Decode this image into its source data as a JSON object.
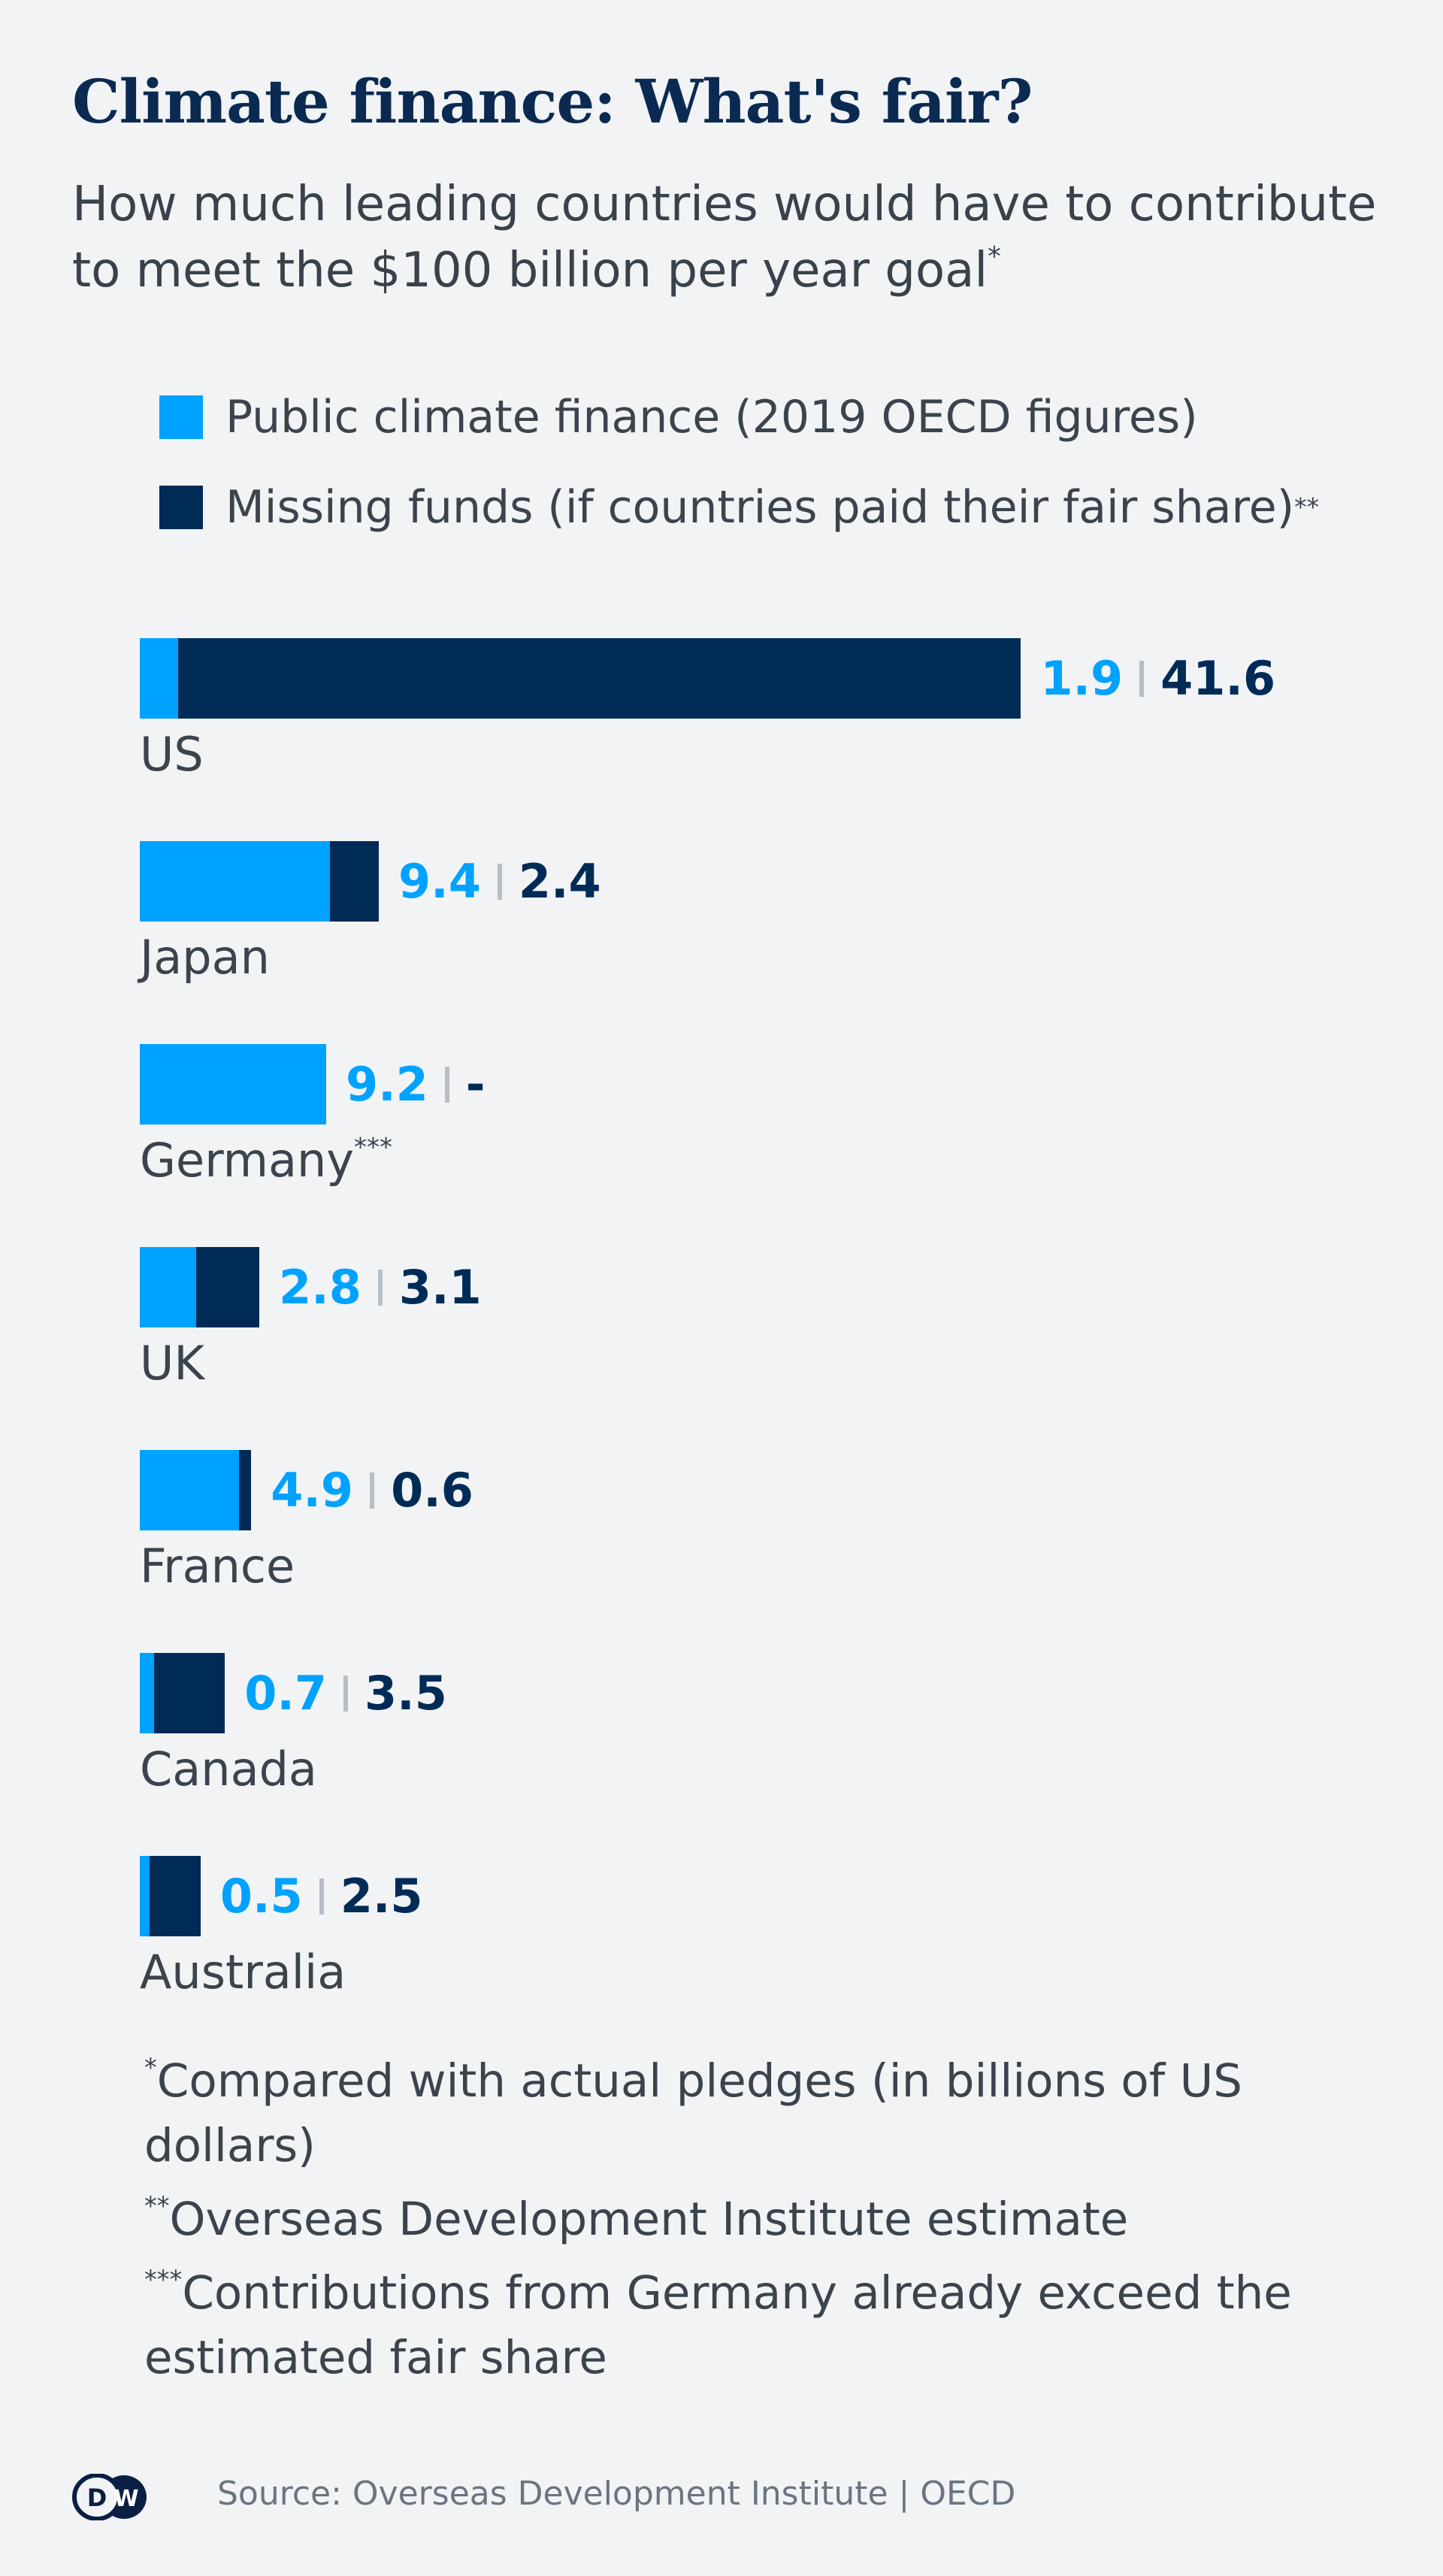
{
  "title": "Climate finance: What's fair?",
  "subtitle": "How much leading countries would have to contribute to meet the $100 billion per year goal",
  "subtitle_mark": "*",
  "colors": {
    "public": "#00a2ff",
    "missing": "#002b57",
    "background": "#f1f3f5"
  },
  "chart_data": {
    "type": "bar",
    "orientation": "horizontal",
    "stacked": true,
    "categories": [
      "US",
      "Japan",
      "Germany",
      "UK",
      "France",
      "Canada",
      "Australia"
    ],
    "category_marks": [
      "",
      "",
      "***",
      "",
      "",
      "",
      ""
    ],
    "series": [
      {
        "name": "Public climate finance (2019 OECD figures)",
        "values": [
          1.9,
          9.4,
          9.2,
          2.8,
          4.9,
          0.7,
          0.5
        ],
        "labels": [
          "1.9",
          "9.4",
          "9.2",
          "2.8",
          "4.9",
          "0.7",
          "0.5"
        ],
        "color": "#00a2ff"
      },
      {
        "name": "Missing funds (if countries paid their fair share)",
        "name_mark": "**",
        "values": [
          41.6,
          2.4,
          0,
          3.1,
          0.6,
          3.5,
          2.5
        ],
        "labels": [
          "41.6",
          "2.4",
          "-",
          "3.1",
          "0.6",
          "3.5",
          "2.5"
        ],
        "color": "#002b57"
      }
    ],
    "unit": "billions of US dollars",
    "grid": false,
    "legend_position": "top-left"
  },
  "footnotes": [
    {
      "mark": "*",
      "text": "Compared with actual pledges (in billions of US dollars)"
    },
    {
      "mark": "**",
      "text": "Overseas Development Institute estimate"
    },
    {
      "mark": "***",
      "text": "Contributions from Germany already exceed the estimated fair share"
    }
  ],
  "logo": "DW",
  "source": "Source: Overseas Development Institute | OECD"
}
